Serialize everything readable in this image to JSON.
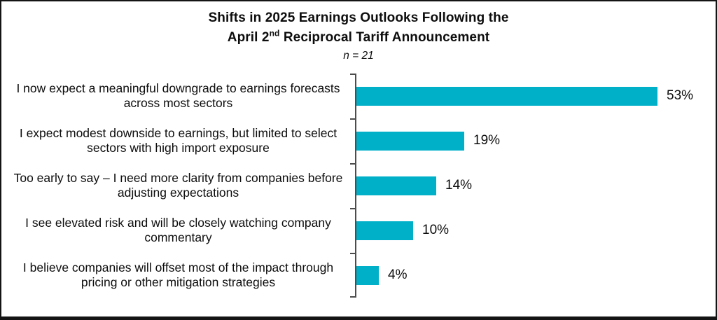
{
  "title": {
    "line1": "Shifts in 2025 Earnings Outlooks Following the",
    "line2_pre": "April 2",
    "line2_sup": "nd",
    "line2_post": " Reciprocal Tariff Announcement",
    "sample_note": "n = 21"
  },
  "colors": {
    "bar": "#00AFC8",
    "axis": "#4d4d4d",
    "text": "#0d0d0d",
    "border": "#141414"
  },
  "chart_data": {
    "type": "bar",
    "orientation": "horizontal",
    "title": "Shifts in 2025 Earnings Outlooks Following the April 2nd Reciprocal Tariff Announcement",
    "subtitle": "n = 21",
    "categories": [
      "I now expect a meaningful downgrade to earnings forecasts across most sectors",
      "I expect modest downside to earnings, but limited to select sectors with high import exposure",
      "Too early to say – I need more clarity from companies before adjusting expectations",
      "I see elevated risk and will be closely watching company commentary",
      "I believe companies will offset most of the impact through pricing or other mitigation strategies"
    ],
    "values": [
      53,
      19,
      14,
      10,
      4
    ],
    "value_labels": [
      "53%",
      "19%",
      "14%",
      "10%",
      "4%"
    ],
    "xlabel": "",
    "ylabel": "",
    "xlim": [
      0,
      55
    ],
    "grid": false,
    "legend": false,
    "data_labels": "outside-end",
    "axis_ticks": "category-boundaries"
  }
}
